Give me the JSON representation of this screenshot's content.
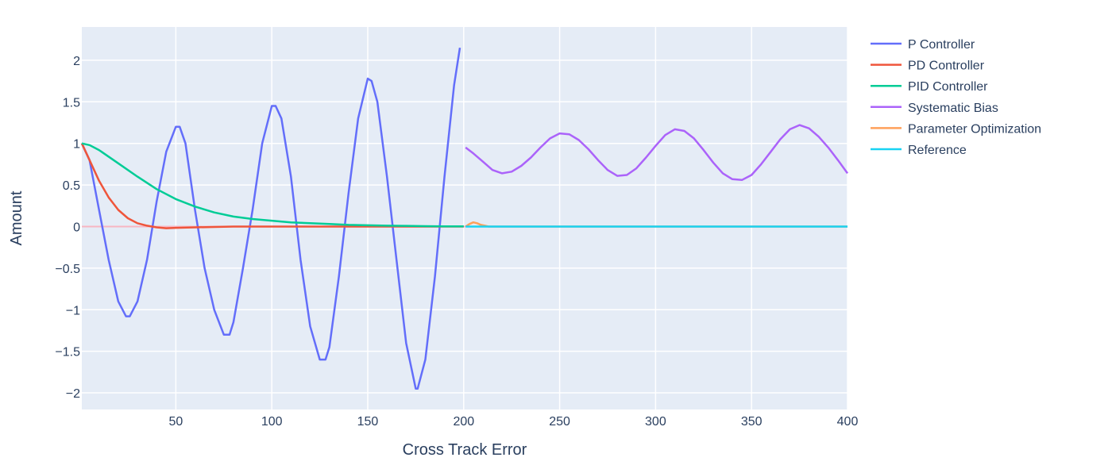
{
  "chart_data": {
    "type": "line",
    "xlabel": "Cross Track Error",
    "ylabel": "Amount",
    "xlim": [
      1,
      400
    ],
    "ylim": [
      -2.2,
      2.4
    ],
    "x_ticks": [
      50,
      100,
      150,
      200,
      250,
      300,
      350,
      400
    ],
    "y_ticks": [
      2,
      1.5,
      1,
      0.5,
      0,
      -0.5,
      -1,
      -1.5,
      -2
    ],
    "y_tick_labels": [
      "2",
      "1.5",
      "1",
      "0.5",
      "0",
      "−0.5",
      "−1",
      "−1.5",
      "−2"
    ],
    "grid": true,
    "legend_position": "top-right",
    "colors": {
      "plot_background": "#e5ecf6",
      "grid": "#ffffff",
      "text": "#2a3f5f",
      "zero_line": "#f7b6c2"
    },
    "series": [
      {
        "name": "P Controller",
        "color": "#636efa",
        "x": [
          1,
          5,
          10,
          15,
          20,
          24,
          26,
          30,
          35,
          40,
          45,
          50,
          52,
          55,
          60,
          65,
          70,
          75,
          78,
          80,
          85,
          90,
          95,
          100,
          102,
          105,
          110,
          115,
          120,
          125,
          128,
          130,
          135,
          140,
          145,
          150,
          152,
          155,
          160,
          165,
          170,
          175,
          176,
          180,
          185,
          190,
          195,
          198
        ],
        "y": [
          1.0,
          0.8,
          0.2,
          -0.4,
          -0.9,
          -1.08,
          -1.08,
          -0.9,
          -0.4,
          0.3,
          0.9,
          1.2,
          1.2,
          1.0,
          0.2,
          -0.5,
          -1.0,
          -1.3,
          -1.3,
          -1.15,
          -0.5,
          0.2,
          1.0,
          1.45,
          1.45,
          1.3,
          0.6,
          -0.4,
          -1.2,
          -1.6,
          -1.6,
          -1.45,
          -0.6,
          0.4,
          1.3,
          1.78,
          1.75,
          1.5,
          0.6,
          -0.4,
          -1.4,
          -1.95,
          -1.95,
          -1.6,
          -0.6,
          0.6,
          1.7,
          2.15
        ]
      },
      {
        "name": "PD Controller",
        "color": "#ef553b",
        "x": [
          1,
          5,
          10,
          15,
          20,
          25,
          30,
          35,
          40,
          45,
          50,
          60,
          70,
          80,
          100,
          120,
          150,
          180,
          200
        ],
        "y": [
          1.0,
          0.8,
          0.55,
          0.35,
          0.2,
          0.1,
          0.04,
          0.01,
          -0.01,
          -0.02,
          -0.015,
          -0.01,
          -0.005,
          0.0,
          0.0,
          0.0,
          0.0,
          0.0,
          0.0
        ]
      },
      {
        "name": "PID Controller",
        "color": "#00cc96",
        "x": [
          1,
          5,
          10,
          20,
          30,
          40,
          50,
          60,
          70,
          80,
          90,
          100,
          110,
          120,
          130,
          140,
          150,
          160,
          170,
          180,
          190,
          200
        ],
        "y": [
          1.0,
          0.98,
          0.92,
          0.76,
          0.6,
          0.45,
          0.33,
          0.24,
          0.17,
          0.12,
          0.09,
          0.07,
          0.05,
          0.04,
          0.03,
          0.02,
          0.015,
          0.01,
          0.008,
          0.005,
          0.003,
          0.002
        ]
      },
      {
        "name": "Systematic Bias",
        "color": "#ab63fa",
        "x": [
          201,
          205,
          210,
          215,
          220,
          225,
          230,
          235,
          240,
          245,
          250,
          255,
          260,
          265,
          270,
          275,
          280,
          285,
          290,
          295,
          300,
          305,
          310,
          315,
          320,
          325,
          330,
          335,
          340,
          345,
          350,
          355,
          360,
          365,
          370,
          375,
          380,
          385,
          390,
          395,
          400
        ],
        "y": [
          0.95,
          0.88,
          0.78,
          0.68,
          0.64,
          0.66,
          0.73,
          0.83,
          0.95,
          1.06,
          1.12,
          1.11,
          1.04,
          0.93,
          0.8,
          0.68,
          0.61,
          0.62,
          0.7,
          0.83,
          0.97,
          1.1,
          1.17,
          1.15,
          1.06,
          0.92,
          0.77,
          0.64,
          0.57,
          0.56,
          0.62,
          0.75,
          0.9,
          1.05,
          1.17,
          1.22,
          1.18,
          1.08,
          0.95,
          0.8,
          0.64
        ]
      },
      {
        "name": "Parameter Optimization",
        "color": "#ffa15a",
        "x": [
          201,
          203,
          205,
          207,
          209,
          211,
          213,
          215,
          220,
          250,
          300,
          350,
          400
        ],
        "y": [
          0.0,
          0.03,
          0.05,
          0.04,
          0.02,
          0.01,
          0.0,
          0.0,
          0.0,
          0.0,
          0.0,
          0.0,
          0.0
        ]
      },
      {
        "name": "Reference",
        "color": "#19d3f3",
        "x": [
          201,
          400
        ],
        "y": [
          0.0,
          0.0
        ]
      }
    ]
  }
}
